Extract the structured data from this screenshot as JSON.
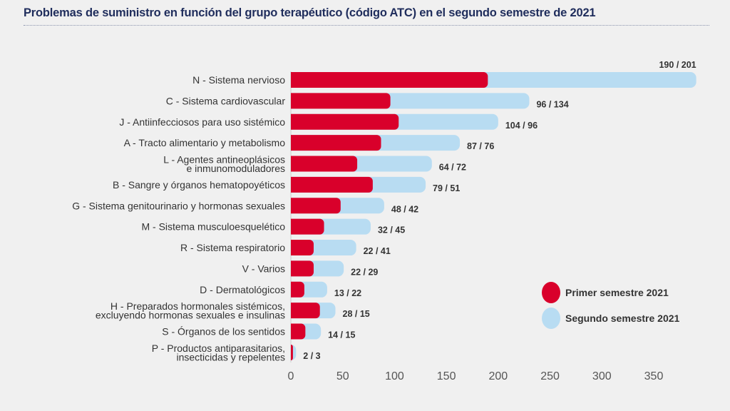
{
  "chart_data": {
    "type": "bar",
    "orientation": "horizontal",
    "stacked": true,
    "title": "Problemas de suministro en función del grupo terapéutico (código ATC) en el segundo semestre de 2021",
    "categories": [
      [
        "N - Sistema nervioso"
      ],
      [
        "C - Sistema cardiovascular"
      ],
      [
        "J - Antiinfecciosos para uso sistémico"
      ],
      [
        "A - Tracto alimentario y metabolismo"
      ],
      [
        "L - Agentes antineoplásicos",
        "e inmunomoduladores"
      ],
      [
        "B - Sangre y órganos hematopoyéticos"
      ],
      [
        "G - Sistema genitourinario y hormonas sexuales"
      ],
      [
        "M - Sistema musculoesquelético"
      ],
      [
        "R - Sistema respiratorio"
      ],
      [
        "V - Varios"
      ],
      [
        "D - Dermatológicos"
      ],
      [
        "H - Preparados hormonales sistémicos,",
        "excluyendo hormonas sexuales e insulinas"
      ],
      [
        "S - Órganos de los sentidos"
      ],
      [
        "P - Productos antiparasitarios,",
        "insecticidas y repelentes"
      ]
    ],
    "series": [
      {
        "name": "Primer semestre 2021",
        "color": "#d9002b",
        "values": [
          190,
          96,
          104,
          87,
          64,
          79,
          48,
          32,
          22,
          22,
          13,
          28,
          14,
          2
        ]
      },
      {
        "name": "Segundo semestre 2021",
        "color": "#b8dcf2",
        "values": [
          201,
          134,
          96,
          76,
          72,
          51,
          42,
          45,
          41,
          29,
          22,
          15,
          15,
          3
        ]
      }
    ],
    "data_labels": [
      "190 / 201",
      "96 / 134",
      "104 / 96",
      "87 / 76",
      "64 / 72",
      "79 / 51",
      "48 / 42",
      "32 / 45",
      "22 / 41",
      "22 / 29",
      "13 / 22",
      "28 / 15",
      "14 / 15",
      "2 / 3"
    ],
    "xticks": [
      0,
      50,
      100,
      150,
      200,
      250,
      300,
      350
    ],
    "xlim": [
      0,
      400
    ],
    "grid": false,
    "legend_position": "bottom-right"
  }
}
